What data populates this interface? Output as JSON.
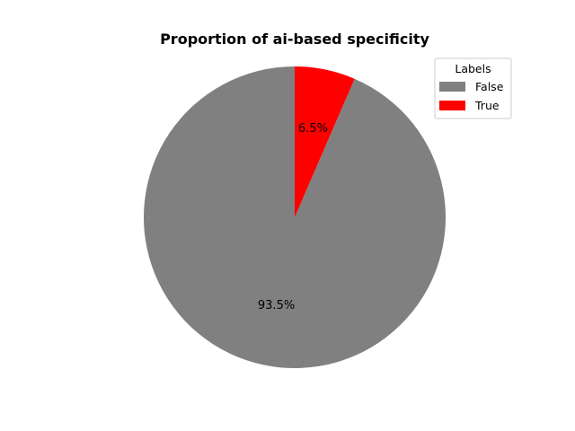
{
  "chart_data": {
    "type": "pie",
    "title": "Proportion of ai-based specificity",
    "labels": [
      "False",
      "True"
    ],
    "values": [
      93.5,
      6.5
    ],
    "pct_labels": [
      "93.5%",
      "6.5%"
    ],
    "colors": [
      "#808080",
      "#ff0000"
    ],
    "legend": {
      "title": "Labels",
      "placement": "top-right"
    },
    "start_angle_deg": 90,
    "direction": "counterclockwise"
  }
}
